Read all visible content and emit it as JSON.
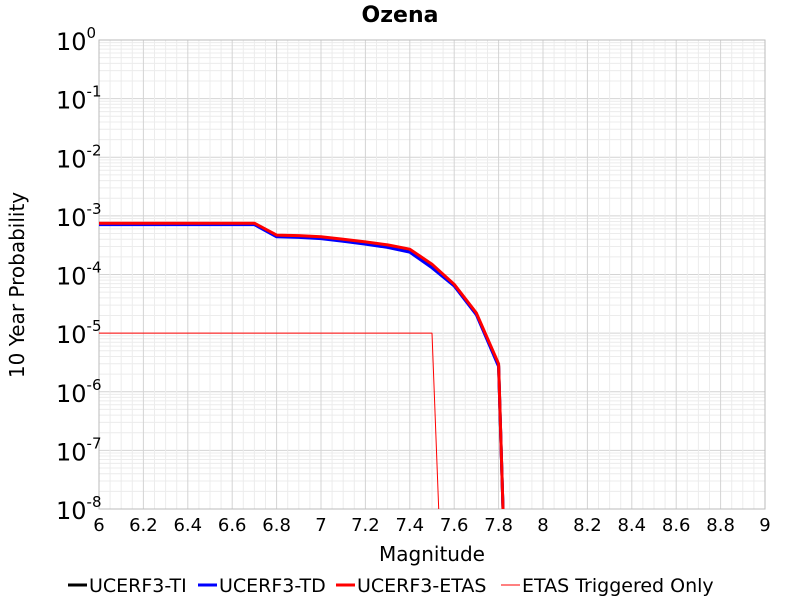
{
  "chart_data": {
    "type": "line",
    "title": "Ozena",
    "xlabel": "Magnitude",
    "ylabel": "10 Year Probability",
    "xlim": [
      6,
      9
    ],
    "ylim": [
      1e-08,
      1
    ],
    "yscale": "log",
    "grid": true,
    "legend_position": "bottom",
    "x_ticks": [
      "6",
      "6.2",
      "6.4",
      "6.6",
      "6.8",
      "7",
      "7.2",
      "7.4",
      "7.6",
      "7.8",
      "8",
      "8.2",
      "8.4",
      "8.6",
      "8.8",
      "9"
    ],
    "y_ticks": [
      {
        "base": "10",
        "exp": "0"
      },
      {
        "base": "10",
        "exp": "-1"
      },
      {
        "base": "10",
        "exp": "-2"
      },
      {
        "base": "10",
        "exp": "-3"
      },
      {
        "base": "10",
        "exp": "-4"
      },
      {
        "base": "10",
        "exp": "-5"
      },
      {
        "base": "10",
        "exp": "-6"
      },
      {
        "base": "10",
        "exp": "-7"
      },
      {
        "base": "10",
        "exp": "-8"
      }
    ],
    "series": [
      {
        "name": "UCERF3-TI",
        "color": "#000000",
        "width": 3,
        "x": [
          6.0,
          6.7,
          6.8,
          6.9,
          7.0,
          7.1,
          7.2,
          7.3,
          7.4,
          7.5,
          7.6,
          7.7,
          7.8,
          7.82
        ],
        "y": [
          0.00072,
          0.00072,
          0.00045,
          0.00044,
          0.00042,
          0.00038,
          0.00034,
          0.0003,
          0.00025,
          0.000135,
          6.5e-05,
          2.1e-05,
          2.8e-06,
          1e-08
        ]
      },
      {
        "name": "UCERF3-TD",
        "color": "#0000ff",
        "width": 3,
        "x": [
          6.0,
          6.7,
          6.8,
          6.9,
          7.0,
          7.1,
          7.2,
          7.3,
          7.4,
          7.5,
          7.6,
          7.7,
          7.8,
          7.82
        ],
        "y": [
          0.00071,
          0.00071,
          0.00044,
          0.00043,
          0.00041,
          0.00037,
          0.00033,
          0.00029,
          0.00024,
          0.00013,
          6.4e-05,
          2.05e-05,
          2.7e-06,
          1e-08
        ]
      },
      {
        "name": "UCERF3-ETAS",
        "color": "#ff0000",
        "width": 3,
        "x": [
          6.0,
          6.7,
          6.8,
          6.9,
          7.0,
          7.1,
          7.2,
          7.3,
          7.4,
          7.5,
          7.6,
          7.7,
          7.8,
          7.82
        ],
        "y": [
          0.00075,
          0.00075,
          0.00047,
          0.00046,
          0.00044,
          0.0004,
          0.00036,
          0.00032,
          0.00027,
          0.00015,
          6.8e-05,
          2.2e-05,
          3e-06,
          1e-08
        ]
      },
      {
        "name": "ETAS Triggered Only",
        "color": "#ff0000",
        "width": 1,
        "x": [
          6.0,
          7.5,
          7.53
        ],
        "y": [
          1e-05,
          1e-05,
          1e-08
        ]
      }
    ]
  }
}
